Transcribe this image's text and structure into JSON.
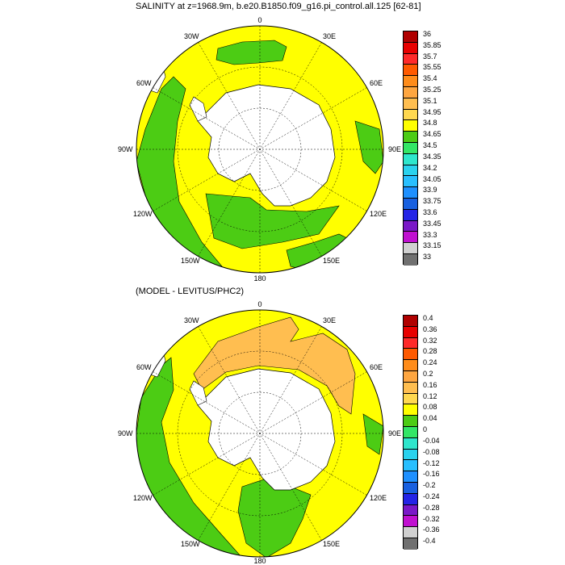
{
  "titles": {
    "top": "SALINITY at z=1968.9m, b.e20.B1850.f09_g16.pi_control.all.125 [62-81]",
    "bottom": "(MODEL - LEVITUS/PHC2)"
  },
  "longitude_labels": {
    "n0": "0",
    "n30e": "30E",
    "n30w": "30W",
    "n60e": "60E",
    "n60w": "60W",
    "n90e": "90E",
    "n90w": "90W",
    "n120e": "120E",
    "n120w": "120W",
    "n150e": "150E",
    "n150w": "150W",
    "n180": "180"
  },
  "colorbar_top": {
    "labels": [
      "36",
      "35.85",
      "35.7",
      "35.55",
      "35.4",
      "35.25",
      "35.1",
      "34.95",
      "34.8",
      "34.65",
      "34.5",
      "34.35",
      "34.2",
      "34.05",
      "33.9",
      "33.75",
      "33.6",
      "33.45",
      "33.3",
      "33.15",
      "33"
    ],
    "colors": [
      "#b00000",
      "#e80000",
      "#ff2a2a",
      "#ff5a00",
      "#ff8c1a",
      "#ffa640",
      "#ffbe50",
      "#ffd850",
      "#ffff00",
      "#4ccc14",
      "#33e666",
      "#2ee6cc",
      "#2ad2ee",
      "#28bfff",
      "#1e90ff",
      "#1860e0",
      "#2424e6",
      "#7a18c8",
      "#c010d0",
      "#d0d0d0",
      "#707070"
    ]
  },
  "colorbar_bottom": {
    "labels": [
      "0.4",
      "0.36",
      "0.32",
      "0.28",
      "0.24",
      "0.2",
      "0.16",
      "0.12",
      "0.08",
      "0.04",
      "0",
      "-0.04",
      "-0.08",
      "-0.12",
      "-0.16",
      "-0.2",
      "-0.24",
      "-0.28",
      "-0.32",
      "-0.36",
      "-0.4"
    ],
    "colors": [
      "#b00000",
      "#e80000",
      "#ff2a2a",
      "#ff5a00",
      "#ff8c1a",
      "#ffa640",
      "#ffbe50",
      "#ffd850",
      "#ffff00",
      "#4ccc14",
      "#33e666",
      "#2ee6cc",
      "#2ad2ee",
      "#28bfff",
      "#1e90ff",
      "#1860e0",
      "#2424e6",
      "#7a18c8",
      "#c010d0",
      "#d0d0d0",
      "#707070"
    ]
  },
  "map_colors": {
    "yellow": "#ffff00",
    "green": "#4ccc14",
    "orange": "#ffbe50",
    "land": "#ffffff"
  }
}
